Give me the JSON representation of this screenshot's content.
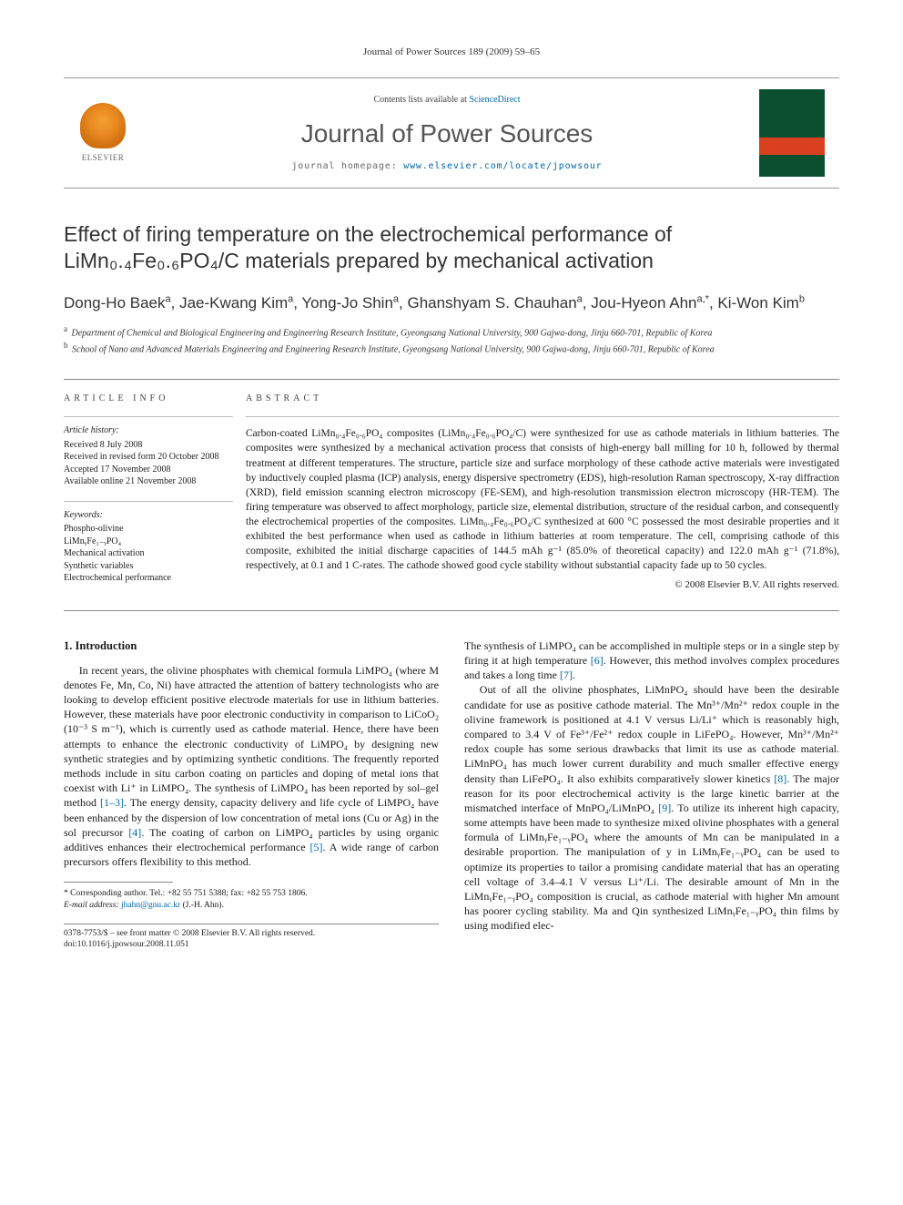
{
  "running_head": "Journal of Power Sources 189 (2009) 59–65",
  "masthead": {
    "publisher": "ELSEVIER",
    "contents_prefix": "Contents lists available at ",
    "contents_link": "ScienceDirect",
    "journal": "Journal of Power Sources",
    "homepage_prefix": "journal homepage: ",
    "homepage_url": "www.elsevier.com/locate/jpowsour",
    "cover_label": "POWER SOURCES"
  },
  "title": "Effect of firing temperature on the electrochemical performance of LiMn₀.₄Fe₀.₆PO₄/C materials prepared by mechanical activation",
  "authors_html": "Dong-Ho Baek<sup>a</sup>, Jae-Kwang Kim<sup>a</sup>, Yong-Jo Shin<sup>a</sup>, Ghanshyam S. Chauhan<sup>a</sup>, Jou-Hyeon Ahn<sup>a,*</sup>, Ki-Won Kim<sup>b</sup>",
  "affiliations": [
    {
      "marker": "a",
      "text": "Department of Chemical and Biological Engineering and Engineering Research Institute, Gyeongsang National University, 900 Gajwa-dong, Jinju 660-701, Republic of Korea"
    },
    {
      "marker": "b",
      "text": "School of Nano and Advanced Materials Engineering and Engineering Research Institute, Gyeongsang National University, 900 Gajwa-dong, Jinju 660-701, Republic of Korea"
    }
  ],
  "info": {
    "head": "article info",
    "history_label": "Article history:",
    "history": [
      "Received 8 July 2008",
      "Received in revised form 20 October 2008",
      "Accepted 17 November 2008",
      "Available online 21 November 2008"
    ],
    "keywords_label": "Keywords:",
    "keywords": [
      "Phospho-olivine",
      "LiMnᵧFe₁₋ᵧPO₄",
      "Mechanical activation",
      "Synthetic variables",
      "Electrochemical performance"
    ]
  },
  "abstract": {
    "head": "abstract",
    "text": "Carbon-coated LiMn₀.₄Fe₀.₆PO₄ composites (LiMn₀.₄Fe₀.₆PO₄/C) were synthesized for use as cathode materials in lithium batteries. The composites were synthesized by a mechanical activation process that consists of high-energy ball milling for 10 h, followed by thermal treatment at different temperatures. The structure, particle size and surface morphology of these cathode active materials were investigated by inductively coupled plasma (ICP) analysis, energy dispersive spectrometry (EDS), high-resolution Raman spectroscopy, X-ray diffraction (XRD), field emission scanning electron microscopy (FE-SEM), and high-resolution transmission electron microscopy (HR-TEM). The firing temperature was observed to affect morphology, particle size, elemental distribution, structure of the residual carbon, and consequently the electrochemical properties of the composites. LiMn₀.₄Fe₀.₆PO₄/C synthesized at 600 °C possessed the most desirable properties and it exhibited the best performance when used as cathode in lithium batteries at room temperature. The cell, comprising cathode of this composite, exhibited the initial discharge capacities of 144.5 mAh g⁻¹ (85.0% of theoretical capacity) and 122.0 mAh g⁻¹ (71.8%), respectively, at 0.1 and 1 C-rates. The cathode showed good cycle stability without substantial capacity fade up to 50 cycles.",
    "copyright": "© 2008 Elsevier B.V. All rights reserved."
  },
  "body": {
    "section_head": "1. Introduction",
    "col1_p1": "In recent years, the olivine phosphates with chemical formula LiMPO₄ (where M denotes Fe, Mn, Co, Ni) have attracted the attention of battery technologists who are looking to develop efficient positive electrode materials for use in lithium batteries. However, these materials have poor electronic conductivity in comparison to LiCoO₂ (10⁻³ S m⁻¹), which is currently used as cathode material. Hence, there have been attempts to enhance the electronic conductivity of LiMPO₄ by designing new synthetic strategies and by optimizing synthetic conditions. The frequently reported methods include in situ carbon coating on particles and doping of metal ions that coexist with Li⁺ in LiMPO₄. The synthesis of LiMPO₄ has been reported by sol–gel method ",
    "ref1": "[1–3]",
    "col1_p1b": ". The energy density, capacity delivery and life cycle of LiMPO₄ have been enhanced by the dispersion of low concentration of metal ions (Cu or Ag) in the sol precursor ",
    "ref4": "[4]",
    "col1_p1c": ". The coating of carbon on LiMPO₄ particles by using organic additives enhances their electrochemical performance ",
    "ref5": "[5]",
    "col1_p1d": ". A wide range of carbon precursors offers flexibility to this method.",
    "col2_p0": "The synthesis of LiMPO₄ can be accomplished in multiple steps or in a single step by firing it at high temperature ",
    "ref6": "[6]",
    "col2_p0b": ". However, this method involves complex procedures and takes a long time ",
    "ref7": "[7]",
    "col2_p0c": ".",
    "col2_p1": "Out of all the olivine phosphates, LiMnPO₄ should have been the desirable candidate for use as positive cathode material. The Mn³⁺/Mn²⁺ redox couple in the olivine framework is positioned at 4.1 V versus Li/Li⁺ which is reasonably high, compared to 3.4 V of Fe³⁺/Fe²⁺ redox couple in LiFePO₄. However, Mn³⁺/Mn²⁺ redox couple has some serious drawbacks that limit its use as cathode material. LiMnPO₄ has much lower current durability and much smaller effective energy density than LiFePO₄. It also exhibits comparatively slower kinetics ",
    "ref8": "[8]",
    "col2_p1b": ". The major reason for its poor electrochemical activity is the large kinetic barrier at the mismatched interface of MnPO₄/LiMnPO₄ ",
    "ref9": "[9]",
    "col2_p1c": ". To utilize its inherent high capacity, some attempts have been made to synthesize mixed olivine phosphates with a general formula of LiMnᵧFe₁₋ᵧPO₄ where the amounts of Mn can be manipulated in a desirable proportion. The manipulation of y in LiMnᵧFe₁₋ᵧPO₄ can be used to optimize its properties to tailor a promising candidate material that has an operating cell voltage of 3.4–4.1 V versus Li⁺/Li. The desirable amount of Mn in the LiMnᵧFe₁₋ᵧPO₄ composition is crucial, as cathode material with higher Mn amount has poorer cycling stability. Ma and Qin synthesized LiMnᵧFe₁₋ᵧPO₄ thin films by using modified elec-"
  },
  "footnotes": {
    "corr": "* Corresponding author. Tel.: +82 55 751 5388; fax: +82 55 753 1806.",
    "email_label": "E-mail address: ",
    "email": "jhahn@gnu.ac.kr",
    "email_who": " (J.-H. Ahn)."
  },
  "imprint": {
    "line1": "0378-7753/$ – see front matter © 2008 Elsevier B.V. All rights reserved.",
    "line2": "doi:10.1016/j.jpowsour.2008.11.051"
  }
}
